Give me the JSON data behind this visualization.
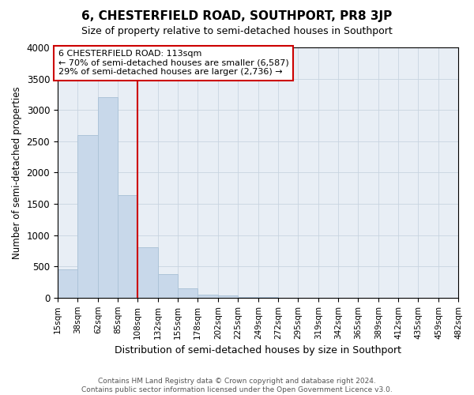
{
  "title": "6, CHESTERFIELD ROAD, SOUTHPORT, PR8 3JP",
  "subtitle": "Size of property relative to semi-detached houses in Southport",
  "xlabel": "Distribution of semi-detached houses by size in Southport",
  "ylabel": "Number of semi-detached properties",
  "annotation_line1": "6 CHESTERFIELD ROAD: 113sqm",
  "annotation_line2": "← 70% of semi-detached houses are smaller (6,587)",
  "annotation_line3": "29% of semi-detached houses are larger (2,736) →",
  "bin_labels": [
    "15sqm",
    "38sqm",
    "62sqm",
    "85sqm",
    "108sqm",
    "132sqm",
    "155sqm",
    "178sqm",
    "202sqm",
    "225sqm",
    "249sqm",
    "272sqm",
    "295sqm",
    "319sqm",
    "342sqm",
    "365sqm",
    "389sqm",
    "412sqm",
    "435sqm",
    "459sqm",
    "482sqm"
  ],
  "bin_edges": [
    15,
    38,
    62,
    85,
    108,
    132,
    155,
    178,
    202,
    225,
    249,
    272,
    295,
    319,
    342,
    365,
    389,
    412,
    435,
    459,
    482
  ],
  "bar_heights": [
    450,
    2600,
    3200,
    1640,
    800,
    380,
    155,
    50,
    30,
    15,
    5,
    2,
    1,
    0,
    0,
    0,
    0,
    0,
    0,
    0
  ],
  "bar_color": "#c8d8ea",
  "bar_edgecolor": "#adc4d8",
  "vline_color": "#cc0000",
  "vline_x": 108,
  "annotation_box_edgecolor": "#cc0000",
  "annotation_box_facecolor": "#ffffff",
  "grid_color": "#c8d4e0",
  "background_color": "#e8eef5",
  "ylim": [
    0,
    4000
  ],
  "footer_line1": "Contains HM Land Registry data © Crown copyright and database right 2024.",
  "footer_line2": "Contains public sector information licensed under the Open Government Licence v3.0."
}
